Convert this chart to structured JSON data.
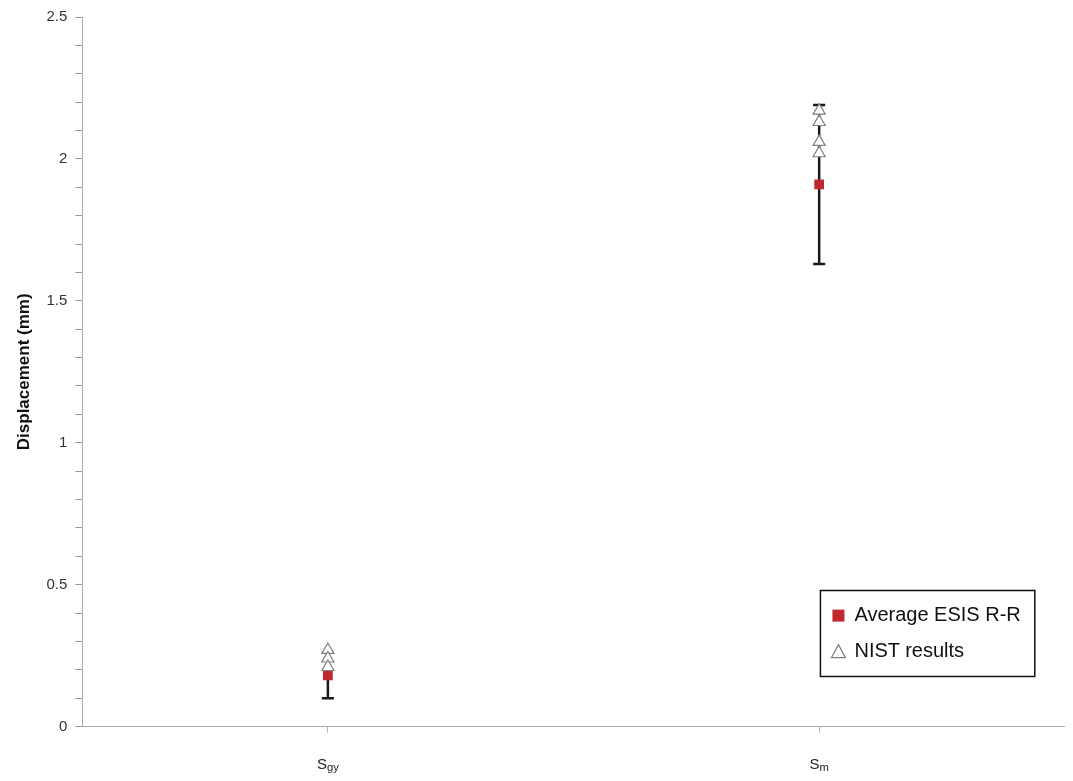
{
  "chart_data": {
    "type": "scatter",
    "ylabel": "Displacement (mm)",
    "categories": [
      "S$_{gy}$",
      "S$_{m}$"
    ],
    "series": [
      {
        "name": "Average ESIS R-R",
        "color": "#c0282d",
        "marker": "square",
        "values": [
          0.18,
          1.91
        ],
        "errors": [
          0.08,
          0.28
        ]
      },
      {
        "name": "NIST results",
        "color": "#7f7f7f",
        "marker": "triangle",
        "x": [
          "S$_{gy}$",
          "S$_{gy}$",
          "S$_{gy}$",
          "S$_{m}$",
          "S$_{m}$",
          "S$_{m}$",
          "S$_{m}$"
        ],
        "values": [
          0.27,
          0.24,
          0.21,
          2.17,
          2.13,
          2.06,
          2.02
        ]
      }
    ],
    "ylim": [
      0,
      2.5
    ],
    "yticks": [
      0,
      {
        "value": 0.1,
        "label": null
      },
      {
        "value": 0.2,
        "label": null
      },
      {
        "value": 0.3,
        "label": null
      },
      {
        "value": 0.4,
        "label": null
      },
      0.5,
      {
        "value": 0.6,
        "label": null
      },
      {
        "value": 0.7,
        "label": null
      },
      {
        "value": 0.8,
        "label": null
      },
      {
        "value": 0.9,
        "label": null
      },
      1,
      {
        "value": 1.1,
        "label": null
      },
      {
        "value": 1.2,
        "label": null
      },
      {
        "value": 1.3,
        "label": null
      },
      {
        "value": 1.4,
        "label": null
      },
      1.5,
      {
        "value": 1.6,
        "label": null
      },
      {
        "value": 1.7,
        "label": null
      },
      {
        "value": 1.8,
        "label": null
      },
      {
        "value": 1.9,
        "label": null
      },
      2,
      {
        "value": 2.1,
        "label": null
      },
      {
        "value": 2.2,
        "label": null
      },
      {
        "value": 2.3,
        "label": null
      },
      {
        "value": 2.4,
        "label": null
      },
      2.5
    ],
    "grid": false,
    "legend": "bottom right"
  }
}
